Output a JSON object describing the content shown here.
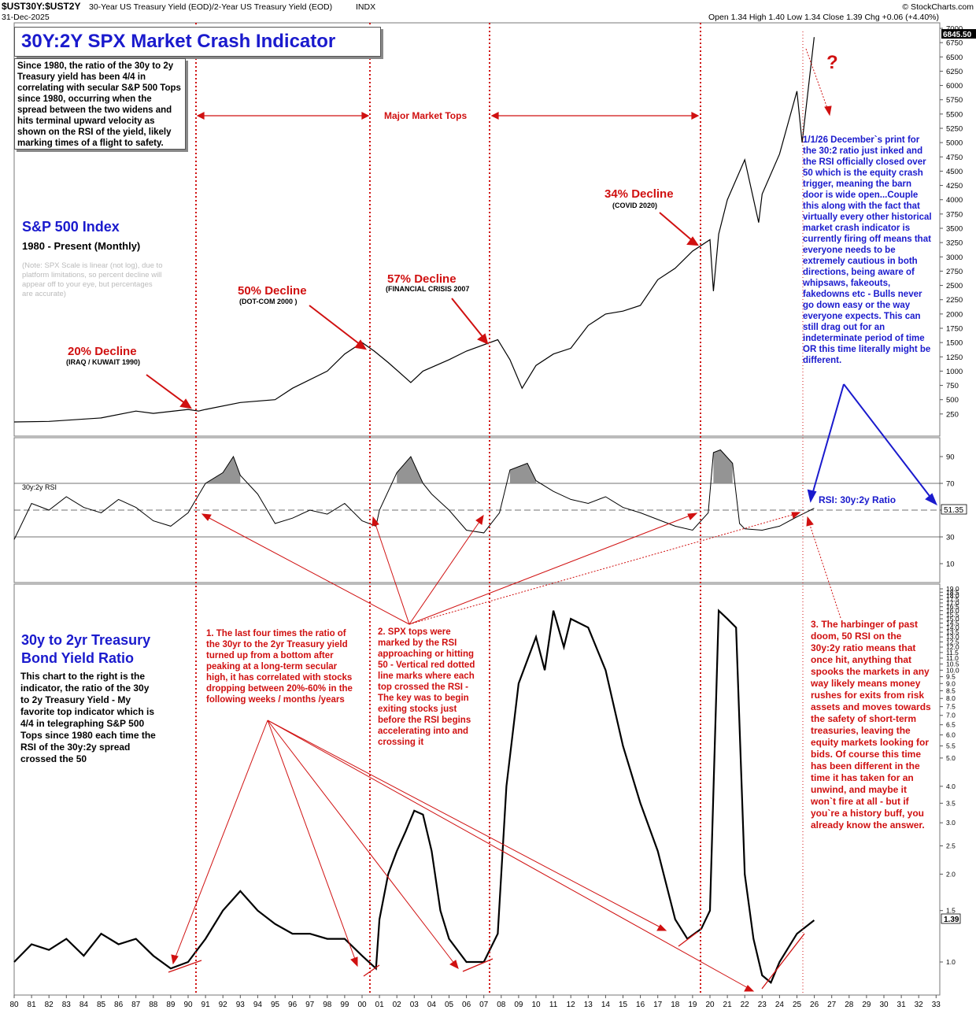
{
  "header": {
    "symbol": "$UST30Y:$UST2Y",
    "description": "30-Year US Treasury Yield (EOD)/2-Year US Treasury Yield (EOD)",
    "exchange": "INDX",
    "date": "31-Dec-2025",
    "credit": "© StockCharts.com",
    "ohlc": "Open 1.34  High 1.40  Low 1.34  Close 1.39  Chg +0.06 (+4.40%)"
  },
  "title": "30Y:2Y SPX Market Crash Indicator",
  "intro_text": "Since 1980, the ratio of the 30y to 2y Treasury yield has been 4/4 in correlating with secular S&P 500 Tops since 1980, occurring when the spread between the two widens and hits terminal upward velocity as shown on the RSI of the yield, likely marking times of a flight to safety.",
  "spx_label": "S&P 500 Index",
  "spx_period": "1980 - Present (Monthly)",
  "spx_note": "(Note: SPX Scale is linear (not log), due to platform limitations, so percent decline will appear off to your eye, but percentages are accurate)",
  "major_tops_label": "Major Market Tops",
  "question_mark": "?",
  "declines": [
    {
      "label": "20% Decline",
      "sub": "(IRAQ / KUWAIT 1990)"
    },
    {
      "label": "50% Decline",
      "sub": "(DOT-COM 2000 )"
    },
    {
      "label": "57% Decline",
      "sub": "(FINANCIAL CRISIS 2007"
    },
    {
      "label": "34% Decline",
      "sub": "(COVID 2020)"
    }
  ],
  "blue_note": "1/1/26 December`s print for the 30:2 ratio just inked and the RSI officially closed over 50 which is the equity crash trigger, meaning the barn door is wide open...Couple this along with the fact that virtually every other historical market crash indicator is currently firing off means that everyone needs to be extremely cautious in both directions, being aware of whipsaws, fakeouts, fakedowns etc - Bulls never go down easy or the way everyone expects. This can still drag out for an indeterminate period of time OR this time literally might be different.",
  "rsi_small_label": "30y:2y RSI",
  "rsi_callout": "RSI: 30y:2y Ratio",
  "ratio_title_1": "30y to 2yr Treasury",
  "ratio_title_2": "Bond Yield Ratio",
  "ratio_desc": "This chart to the right is the indicator, the ratio of the 30y to 2y Treasury Yield - My favorite top indicator which is 4/4 in telegraphing S&P 500 Tops since 1980 each time the RSI of the 30y:2y spread crossed the 50",
  "note1": "1. The last four times the ratio of the 30yr to the 2yr Treasury yield turned up from a bottom after peaking at a long-term secular high, it has correlated with stocks dropping between 20%-60% in the following weeks / months /years",
  "note2": "2. SPX tops were marked by the RSI approaching or hitting 50 - Vertical red dotted line marks where each top crossed the RSI - The key was to begin exiting stocks just before the RSI begins accelerating into and crossing it",
  "note3": "3. The harbinger of past doom, 50 RSI on the 30y:2y ratio means that once hit, anything that spooks the markets in any way likely means money rushes for exits from risk assets and moves towards the safety of short-term treasuries, leaving the equity markets looking for bids. Of course this time has been different in the time it has taken for an unwind, and maybe it won`t fire at all - but if you`re a history buff, you already know the answer.",
  "chart_data": [
    {
      "type": "line",
      "name": "S&P 500 Index",
      "x": [
        1980,
        1982,
        1985,
        1987,
        1988,
        1990,
        1990.6,
        1991,
        1993,
        1995,
        1996,
        1998,
        1999,
        2000,
        2000.7,
        2001.5,
        2002.8,
        2003.5,
        2005,
        2006,
        2007.8,
        2008.5,
        2009.2,
        2010,
        2011,
        2012,
        2013,
        2014,
        2015,
        2016,
        2017,
        2018,
        2019,
        2020,
        2020.2,
        2020.5,
        2021,
        2022,
        2022.8,
        2023,
        2024,
        2025,
        2025.3,
        2025.99
      ],
      "y": [
        110,
        120,
        180,
        300,
        260,
        330,
        300,
        330,
        450,
        500,
        700,
        1000,
        1300,
        1500,
        1350,
        1150,
        800,
        1000,
        1200,
        1350,
        1550,
        1200,
        700,
        1100,
        1300,
        1400,
        1800,
        2000,
        2050,
        2150,
        2600,
        2800,
        3100,
        3300,
        2400,
        3400,
        4000,
        4700,
        3600,
        4100,
        4800,
        5900,
        5000,
        6845.5
      ],
      "yticks": [
        250,
        500,
        750,
        1000,
        1250,
        1500,
        1750,
        2000,
        2250,
        2500,
        2750,
        3000,
        3250,
        3500,
        3750,
        4000,
        4250,
        4500,
        4750,
        5000,
        5250,
        5500,
        5750,
        6000,
        6250,
        6500,
        6750,
        7000
      ],
      "ylim": [
        0,
        7000
      ],
      "last_value": "6845.50"
    },
    {
      "type": "line",
      "name": "30y:2y RSI",
      "x": [
        1980,
        1981,
        1982,
        1983,
        1984,
        1985,
        1986,
        1987,
        1988,
        1989,
        1990,
        1991,
        1992,
        1992.6,
        1993,
        1994,
        1995,
        1996,
        1997,
        1998,
        1999,
        2000,
        2000.8,
        2001,
        2002,
        2002.8,
        2003.5,
        2004,
        2005,
        2006,
        2007,
        2007.9,
        2008.5,
        2009.5,
        2010,
        2011,
        2012,
        2013,
        2014,
        2015,
        2016,
        2017,
        2018,
        2019,
        2019.9,
        2020.2,
        2020.6,
        2021.3,
        2021.7,
        2022,
        2023,
        2024,
        2025,
        2025.99
      ],
      "y": [
        28,
        55,
        50,
        60,
        52,
        48,
        58,
        52,
        42,
        38,
        48,
        70,
        78,
        90,
        76,
        62,
        40,
        44,
        50,
        47,
        55,
        42,
        38,
        50,
        78,
        90,
        70,
        62,
        50,
        35,
        33,
        48,
        80,
        85,
        72,
        64,
        58,
        55,
        60,
        52,
        48,
        43,
        38,
        35,
        48,
        93,
        95,
        85,
        40,
        36,
        35,
        38,
        45,
        51.35
      ],
      "yticks": [
        10,
        30,
        50,
        70,
        90
      ],
      "ylim": [
        0,
        100
      ],
      "last_value": "51.35"
    },
    {
      "type": "line",
      "name": "30y:2y ratio",
      "x": [
        1980,
        1981,
        1982,
        1983,
        1984,
        1985,
        1986,
        1987,
        1988,
        1989,
        1990,
        1991,
        1992,
        1993,
        1994,
        1995,
        1996,
        1997,
        1998,
        1999,
        2000,
        2000.8,
        2001,
        2001.5,
        2002,
        2002.5,
        2003,
        2003.5,
        2004,
        2004.5,
        2005,
        2006,
        2007,
        2007.8,
        2008.3,
        2009,
        2010,
        2010.5,
        2011,
        2011.6,
        2012,
        2013,
        2014,
        2015,
        2016,
        2017,
        2018,
        2018.7,
        2019.5,
        2020,
        2020.5,
        2021,
        2021.5,
        2022,
        2022.5,
        2023,
        2023.5,
        2024,
        2025,
        2025.99
      ],
      "y": [
        1.0,
        1.15,
        1.1,
        1.2,
        1.05,
        1.25,
        1.15,
        1.2,
        1.05,
        0.95,
        1.0,
        1.2,
        1.5,
        1.75,
        1.5,
        1.35,
        1.25,
        1.25,
        1.2,
        1.2,
        1.05,
        0.95,
        1.4,
        2.0,
        2.4,
        2.8,
        3.3,
        3.2,
        2.4,
        1.5,
        1.2,
        1.0,
        1.0,
        1.25,
        4.0,
        9.0,
        13.0,
        10.0,
        16.0,
        12.0,
        15.0,
        14.0,
        10.0,
        5.5,
        3.5,
        2.4,
        1.4,
        1.2,
        1.3,
        1.5,
        16.0,
        15.0,
        14.0,
        2.0,
        1.2,
        0.9,
        0.85,
        1.0,
        1.25,
        1.39
      ],
      "yticks": [
        1.0,
        1.5,
        2.0,
        2.5,
        3.0,
        3.5,
        4.0,
        5.0,
        5.5,
        6.0,
        6.5,
        7.0,
        7.5,
        8.0,
        8.5,
        9.0,
        9.5,
        10.0,
        10.5,
        11.0,
        11.5,
        12.0,
        12.5,
        13.0,
        13.5,
        14.0,
        14.5,
        15.0,
        15.5,
        16.0,
        16.5,
        17.0,
        17.5,
        18.0,
        18.5,
        19.0
      ],
      "scale": "log",
      "last_value": "1.39"
    }
  ],
  "x_axis_labels": [
    "80",
    "81",
    "82",
    "83",
    "84",
    "85",
    "86",
    "87",
    "88",
    "89",
    "90",
    "91",
    "92",
    "93",
    "94",
    "95",
    "96",
    "97",
    "98",
    "99",
    "00",
    "01",
    "02",
    "03",
    "04",
    "05",
    "06",
    "07",
    "08",
    "09",
    "10",
    "11",
    "12",
    "13",
    "14",
    "15",
    "16",
    "17",
    "18",
    "19",
    "20",
    "21",
    "22",
    "23",
    "24",
    "25",
    "26",
    "27",
    "28",
    "29",
    "30",
    "31",
    "32",
    "33"
  ],
  "colors": {
    "title": "#1a1acd",
    "annotation": "#d01010",
    "price": "#000000",
    "overbought_fill": "#888888"
  }
}
